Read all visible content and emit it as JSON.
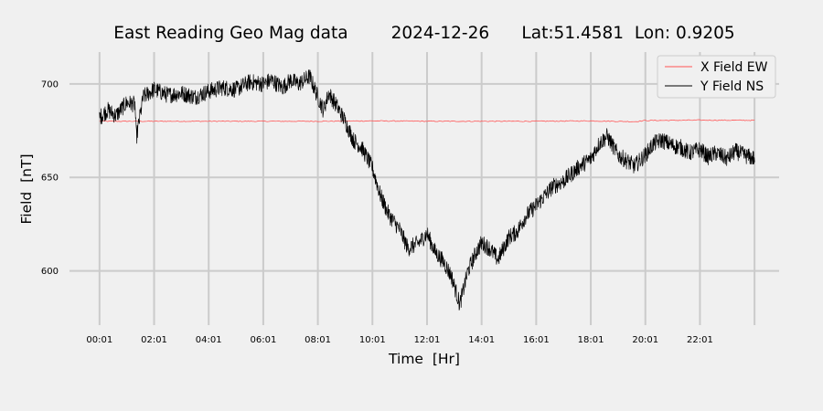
{
  "chart_data": {
    "type": "line",
    "title": "East Reading Geo Mag data        2024-12-26      Lat:51.4581  Lon: 0.9205",
    "xlabel": "Time  [Hr]",
    "ylabel": "Field  [nT]",
    "x_ticks": [
      "00:01",
      "02:01",
      "04:01",
      "06:01",
      "08:01",
      "10:01",
      "12:01",
      "14:01",
      "16:01",
      "18:01",
      "20:01",
      "22:01"
    ],
    "y_ticks": [
      600,
      650,
      700
    ],
    "xlim_hours": [
      -1.1,
      24.9
    ],
    "ylim": [
      571,
      717
    ],
    "grid": true,
    "legend_position": "top-right",
    "series": [
      {
        "name": "X Field EW",
        "color": "#ff5555",
        "x_hours": [
          0,
          2,
          4,
          6,
          8,
          10,
          12,
          14,
          16,
          18,
          19.6,
          20,
          22,
          24
        ],
        "values": [
          680,
          680,
          680,
          680,
          680,
          680.2,
          680,
          680,
          680,
          680.2,
          679.8,
          680.4,
          680.6,
          680.5
        ]
      },
      {
        "name": "Y Field NS",
        "color": "#000000",
        "x_hours": [
          0,
          0.3,
          0.6,
          1,
          1.3,
          1.35,
          1.6,
          2,
          2.5,
          3,
          3.5,
          4,
          4.5,
          5,
          5.5,
          6,
          6.3,
          6.7,
          7,
          7.3,
          7.7,
          8,
          8.2,
          8.4,
          8.7,
          9,
          9.3,
          9.6,
          10,
          10.3,
          10.6,
          11,
          11.3,
          11.7,
          12,
          12.3,
          12.6,
          12.9,
          13.2,
          13.5,
          13.8,
          14,
          14.3,
          14.6,
          15,
          15.3,
          15.6,
          16,
          16.3,
          16.6,
          17,
          17.3,
          17.6,
          18,
          18.3,
          18.6,
          19,
          19.3,
          19.6,
          20,
          20.3,
          20.6,
          21,
          21.3,
          21.6,
          22,
          22.3,
          22.6,
          23,
          23.3,
          23.6,
          24
        ],
        "values": [
          682,
          686,
          683,
          690,
          689,
          671,
          693,
          697,
          694,
          695,
          693,
          696,
          698,
          697,
          701,
          700,
          702,
          698,
          702,
          700,
          704,
          693,
          686,
          695,
          688,
          680,
          670,
          666,
          655,
          640,
          630,
          622,
          612,
          615,
          620,
          610,
          605,
          597,
          582,
          600,
          610,
          615,
          612,
          606,
          618,
          621,
          629,
          635,
          640,
          645,
          648,
          652,
          656,
          660,
          668,
          672,
          662,
          659,
          656,
          662,
          668,
          670,
          667,
          666,
          663,
          665,
          661,
          663,
          660,
          664,
          662,
          660
        ]
      }
    ]
  }
}
